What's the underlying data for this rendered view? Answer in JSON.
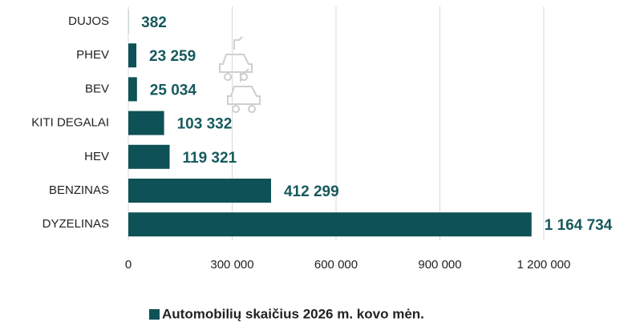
{
  "chart_data": {
    "type": "barh",
    "categories": [
      "DUJOS",
      "PHEV",
      "BEV",
      "KITI DEGALAI",
      "HEV",
      "BENZINAS",
      "DYZELINAS"
    ],
    "series": [
      {
        "name": "Automobilių skaičius 2026 m. kovo mėn.",
        "color": "#0e5156",
        "values": [
          382,
          23259,
          25034,
          103332,
          119321,
          412299,
          1164734
        ],
        "value_labels": [
          "382",
          "23 259",
          "25 034",
          "103 332",
          "119 321",
          "412 299",
          "1 164 734"
        ]
      }
    ],
    "xlim": [
      0,
      1200000
    ],
    "xticks": [
      0,
      {
        "value": 300000,
        "label": "300 000"
      },
      {
        "value": 600000,
        "label": "600 000"
      },
      {
        "value": 900000,
        "label": "900 000"
      },
      {
        "value": 1200000,
        "label": "1 200 000"
      }
    ],
    "grid": true,
    "legend": "bottom"
  }
}
